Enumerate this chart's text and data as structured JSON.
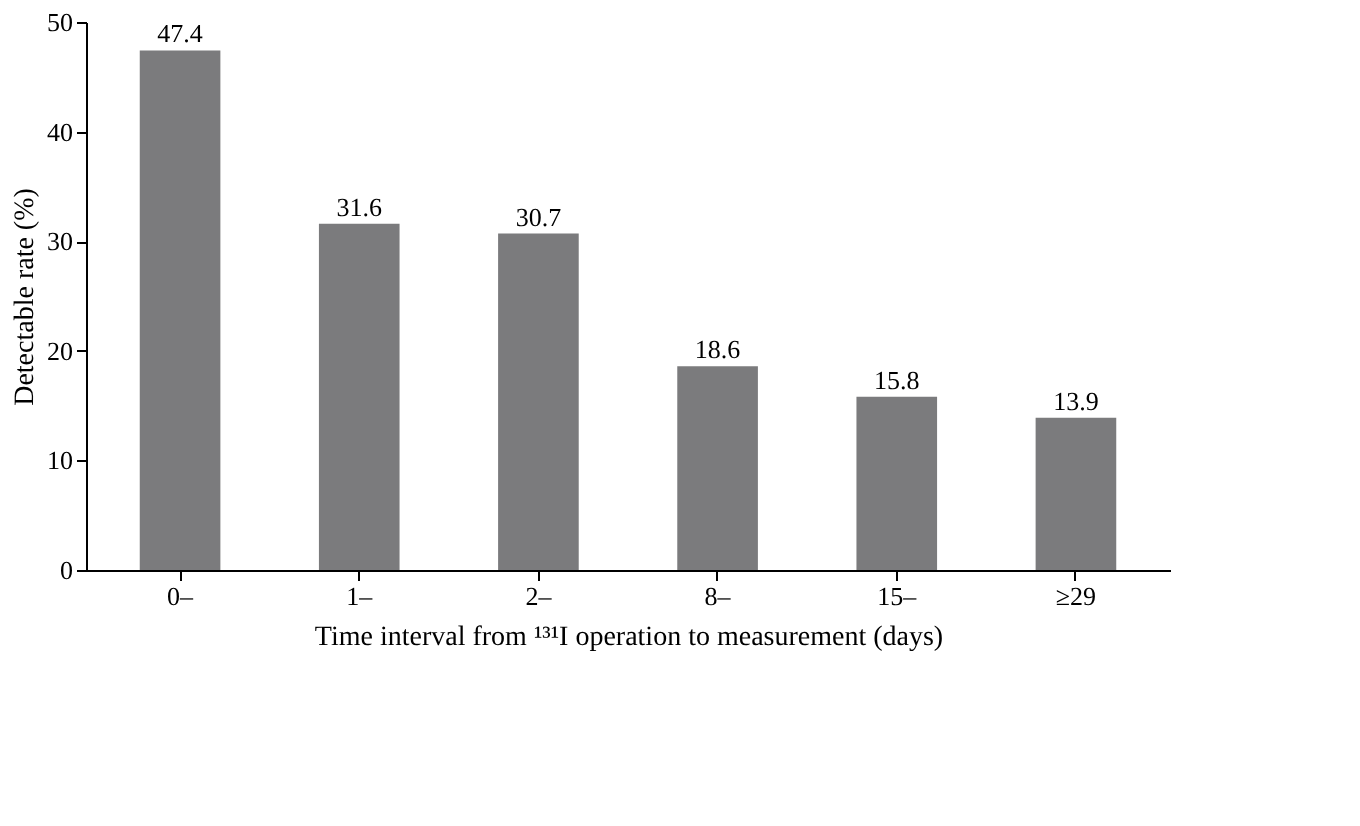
{
  "chart_data": {
    "type": "bar",
    "xlabel": "Time interval from ¹³¹I operation to measurement (days)",
    "ylabel": "Detectable rate (%)",
    "categories": [
      "0–",
      "1–",
      "2–",
      "8–",
      "15–",
      "≥29"
    ],
    "values": [
      47.4,
      31.6,
      30.7,
      18.6,
      15.8,
      13.9
    ],
    "color": "#7b7b7d",
    "ylim": [
      0,
      50
    ],
    "yticks": [
      0,
      10,
      20,
      30,
      40,
      50
    ],
    "data_labels": true,
    "grid": false
  }
}
